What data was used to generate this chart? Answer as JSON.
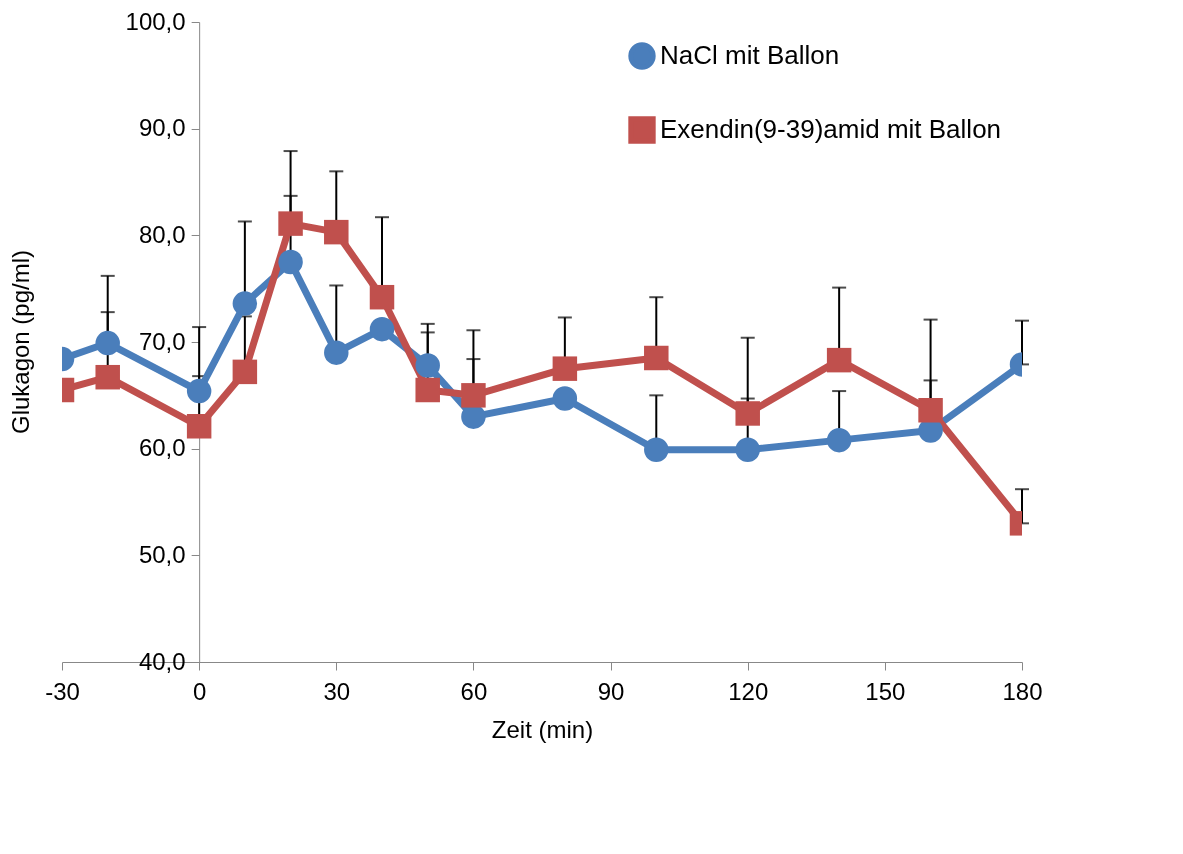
{
  "chart_data": {
    "type": "line",
    "xlabel": "Zeit (min)",
    "ylabel": "Glukagon (pg/ml)",
    "x": [
      -30,
      -20,
      0,
      10,
      20,
      30,
      40,
      50,
      60,
      80,
      100,
      120,
      140,
      160,
      180
    ],
    "series": [
      {
        "name": "NaCl mit Ballon",
        "color": "#4a7ebb",
        "marker": "circle",
        "values": [
          68.4,
          69.9,
          65.4,
          73.6,
          77.5,
          69.0,
          71.2,
          67.8,
          63.0,
          64.7,
          59.9,
          59.9,
          60.8,
          61.7,
          67.9
        ],
        "errors": [
          null,
          [
            69.9,
            76.2
          ],
          [
            65.4,
            71.4
          ],
          [
            73.6,
            81.3
          ],
          [
            77.5,
            83.7
          ],
          [
            69.0,
            75.3
          ],
          null,
          [
            67.8,
            70.9
          ],
          [
            63.0,
            68.4
          ],
          null,
          [
            59.9,
            65.0
          ],
          [
            59.9,
            64.7
          ],
          [
            60.8,
            65.4
          ],
          [
            61.7,
            66.4
          ],
          [
            67.9,
            72.0
          ]
        ]
      },
      {
        "name": "Exendin(9-39)amid mit Ballon",
        "color": "#c0504d",
        "marker": "square",
        "values": [
          65.5,
          66.7,
          62.1,
          67.2,
          81.1,
          80.3,
          74.2,
          65.5,
          65.0,
          67.5,
          68.5,
          63.3,
          68.3,
          63.6,
          53.0
        ],
        "errors": [
          null,
          [
            66.7,
            72.8
          ],
          [
            62.1,
            66.8
          ],
          [
            67.2,
            72.4
          ],
          [
            81.1,
            87.9
          ],
          [
            80.3,
            86.0
          ],
          [
            74.2,
            81.7
          ],
          [
            65.5,
            71.7
          ],
          [
            65.0,
            71.1
          ],
          [
            67.5,
            72.3
          ],
          [
            68.5,
            74.2
          ],
          [
            63.3,
            70.4
          ],
          [
            68.3,
            75.1
          ],
          [
            63.6,
            72.1
          ],
          [
            53.0,
            56.2
          ]
        ]
      }
    ],
    "xlim": [
      -30,
      180
    ],
    "xticks": [
      -30,
      0,
      30,
      60,
      90,
      120,
      150,
      180
    ],
    "ylim": [
      40,
      100
    ],
    "yticks": [
      {
        "value": 40,
        "label": "40,0"
      },
      {
        "value": 50,
        "label": "50,0"
      },
      {
        "value": 60,
        "label": "60,0"
      },
      {
        "value": 70,
        "label": "70,0"
      },
      {
        "value": 80,
        "label": "80,0"
      },
      {
        "value": 90,
        "label": "90,0"
      },
      {
        "value": 100,
        "label": "100,0"
      }
    ],
    "grid": false,
    "legend": "top right",
    "line_style": "solid"
  }
}
